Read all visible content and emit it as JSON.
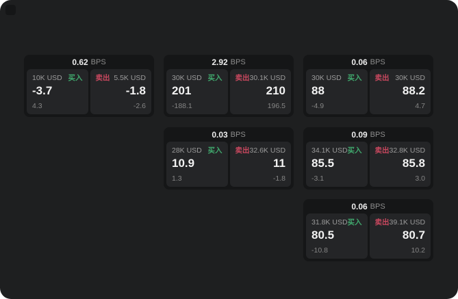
{
  "labels": {
    "bps": "BPS",
    "buy": "买入",
    "sell": "卖出"
  },
  "colors": {
    "page_bg": "#1e1f20",
    "card_bg": "#151617",
    "panel_bg": "#242527",
    "buy_green": "#40a86d",
    "sell_red": "#c9485f",
    "value_white": "#f2f2f2",
    "muted_gray": "#8d8d8d"
  },
  "cards": [
    {
      "bps": "0.62",
      "buy": {
        "size": "10K USD",
        "price": "-3.7",
        "delta": "4.3"
      },
      "sell": {
        "size": "5.5K USD",
        "price": "-1.8",
        "delta": "-2.6"
      }
    },
    {
      "bps": "2.92",
      "buy": {
        "size": "30K USD",
        "price": "201",
        "delta": "-188.1"
      },
      "sell": {
        "size": "30.1K USD",
        "price": "210",
        "delta": "196.5"
      }
    },
    {
      "bps": "0.06",
      "buy": {
        "size": "30K USD",
        "price": "88",
        "delta": "-4.9"
      },
      "sell": {
        "size": "30K USD",
        "price": "88.2",
        "delta": "4.7"
      }
    },
    {
      "bps": "0.03",
      "buy": {
        "size": "28K USD",
        "price": "10.9",
        "delta": "1.3"
      },
      "sell": {
        "size": "32.6K USD",
        "price": "11",
        "delta": "-1.8"
      }
    },
    {
      "bps": "0.09",
      "buy": {
        "size": "34.1K USD",
        "price": "85.5",
        "delta": "-3.1"
      },
      "sell": {
        "size": "32.8K USD",
        "price": "85.8",
        "delta": "3.0"
      }
    },
    {
      "bps": "0.06",
      "buy": {
        "size": "31.8K USD",
        "price": "80.5",
        "delta": "-10.8"
      },
      "sell": {
        "size": "39.1K USD",
        "price": "80.7",
        "delta": "10.2"
      }
    }
  ]
}
